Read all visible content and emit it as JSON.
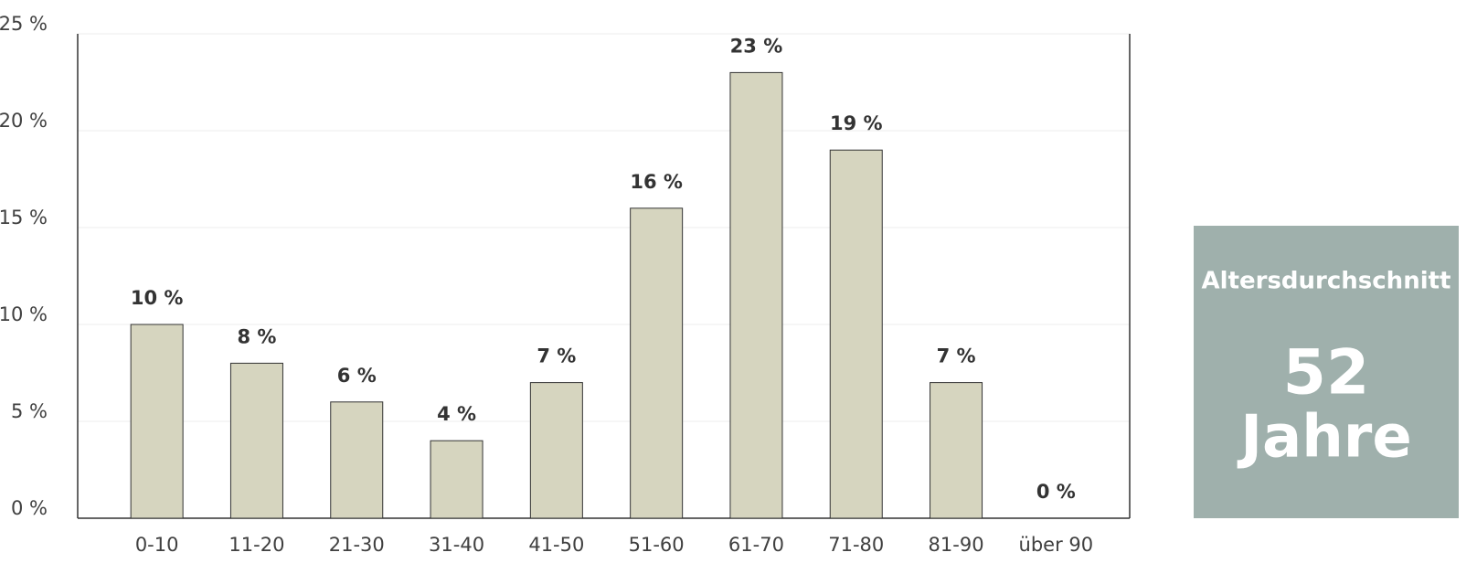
{
  "chart_data": {
    "type": "bar",
    "categories": [
      "0-10",
      "11-20",
      "21-30",
      "31-40",
      "41-50",
      "51-60",
      "61-70",
      "71-80",
      "81-90",
      "über 90"
    ],
    "values": [
      10,
      8,
      6,
      4,
      7,
      16,
      23,
      19,
      7,
      0
    ],
    "value_labels": [
      "10 %",
      "8 %",
      "6 %",
      "4 %",
      "7 %",
      "16 %",
      "23 %",
      "19 %",
      "7 %",
      "0 %"
    ],
    "color": "#d6d5bf",
    "ylim": [
      0,
      25
    ],
    "yticks": [
      {
        "value": 0,
        "label": "0 %"
      },
      {
        "value": 5,
        "label": "5 %"
      },
      {
        "value": 10,
        "label": "10 %"
      },
      {
        "value": 15,
        "label": "15 %"
      },
      {
        "value": 20,
        "label": "20 %"
      },
      {
        "value": 25,
        "label": "25 %"
      }
    ],
    "grid": true,
    "annotation": {
      "title": "Altersdurchschnitt",
      "value": "52",
      "unit": "Jahre"
    }
  }
}
